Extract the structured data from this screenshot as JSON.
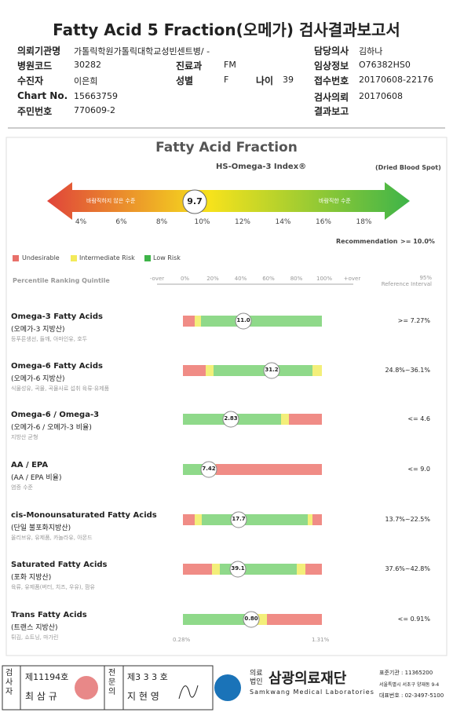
{
  "header": {
    "title": "Fatty Acid 5 Fraction(오메가) 검사결과보고서",
    "fields": [
      {
        "label": "의뢰기관명",
        "value": "가톨릭학원가톨릭대학교성빈센트병/ -"
      },
      {
        "label": "병원코드",
        "value": "30282"
      },
      {
        "label": "진료과",
        "value": "FM"
      },
      {
        "label": "수진자",
        "value": "이은희"
      },
      {
        "label": "성별",
        "value": "F"
      },
      {
        "label": "나이",
        "value": "39"
      },
      {
        "label": "Chart No.",
        "value": "15663759"
      },
      {
        "label": "주민번호",
        "value": "770609-2"
      },
      {
        "label": "담당의사",
        "value": "김하나"
      },
      {
        "label": "임상정보",
        "value": "O76382HS0"
      },
      {
        "label": "접수번호",
        "value": "20170608-22176"
      },
      {
        "label": "검사의뢰",
        "value": "20170608"
      },
      {
        "label": "결과보고"
      }
    ]
  },
  "index": {
    "title": "Fatty Acid Fraction",
    "subtitle": "HS-Omega-3 Index®",
    "note": "(Dried Blood Spot)",
    "left_text": "바람직하지 않은 수준",
    "right_text": "바람직한 수준",
    "value": "9.7",
    "ticks": [
      "4%",
      "6%",
      "8%",
      "10%",
      "12%",
      "14%",
      "16%",
      "18%"
    ],
    "recommendation": "Recommendation",
    "recommendation_value": ">= 10.0%"
  },
  "legend": [
    "Undesirable",
    "Intermediate Risk",
    "Low Risk"
  ],
  "scale": {
    "title": "Percentile Ranking Quintile",
    "labels": [
      "-over",
      "0%",
      "20%",
      "40%",
      "60%",
      "80%",
      "100%",
      "+over"
    ],
    "reference": "95%\nReference Interval"
  },
  "rows": [
    {
      "name": "Omega-3 Fatty Acids",
      "korean": "(오메가-3 지방산)",
      "foods": "등푸른생선, 들깨, 아마인유, 호두",
      "value": "11.0",
      "reference": ">= 7.27%"
    },
    {
      "name": "Omega-6 Fatty Acids",
      "korean": "(오메가-6 지방산)",
      "foods": "식물성유, 곡물, 곡물사료 섭취 육류·유제품",
      "value": "31.2",
      "reference": "24.8%~36.1%"
    },
    {
      "name": "Omega-6 / Omega-3",
      "korean": "(오메가-6 / 오메가-3 비율)",
      "foods": "지방산 균형",
      "value": "2.83",
      "reference": "<= 4.6"
    },
    {
      "name": "AA / EPA",
      "korean": "(AA / EPA 비율)",
      "foods": "염증 수준",
      "value": "7.42",
      "reference": "<= 9.0"
    },
    {
      "name": "cis-Monounsaturated Fatty Acids",
      "korean": "(단일 불포화지방산)",
      "foods": "올리브유, 유제품, 카놀라유, 아몬드",
      "value": "17.7",
      "reference": "13.7%~22.5%"
    },
    {
      "name": "Saturated Fatty Acids",
      "korean": "(포화 지방산)",
      "foods": "육류, 유제품(버터, 치즈, 우유), 팜유",
      "value": "39.1",
      "reference": "37.6%~42.8%"
    },
    {
      "name": "Trans Fatty Acids",
      "korean": "(트랜스 지방산)",
      "foods": "튀김, 쇼트닝, 마가린",
      "value": "0.80",
      "reference": "<= 0.91%",
      "range_low": "0.28%",
      "range_high": "1.31%"
    }
  ],
  "footer": {
    "tester_label": "검사자",
    "tester_no": "제11194호",
    "tester_name": "최 삼 규",
    "doctor_label": "전문의",
    "doctor_no": "제3 3 3 호",
    "doctor_name": "지 현 영",
    "org_prefix": "의료법인",
    "org_name": "삼광의료재단",
    "org_en": "Samkwang Medical Laboratories",
    "code": "표준기관 : 11365200",
    "address": "서울특별시 서초구 양재동 9-4",
    "phone": "대표번호 : 02-3497-5100"
  }
}
